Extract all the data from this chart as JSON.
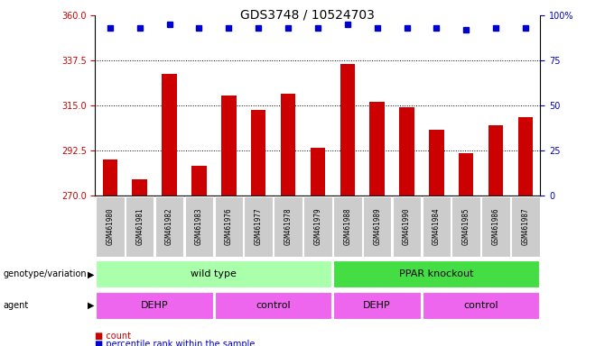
{
  "title": "GDS3748 / 10524703",
  "samples": [
    "GSM461980",
    "GSM461981",
    "GSM461982",
    "GSM461983",
    "GSM461976",
    "GSM461977",
    "GSM461978",
    "GSM461979",
    "GSM461988",
    "GSM461989",
    "GSM461990",
    "GSM461984",
    "GSM461985",
    "GSM461986",
    "GSM461987"
  ],
  "bar_values": [
    288,
    278,
    331,
    285,
    320,
    313,
    321,
    294,
    336,
    317,
    314,
    303,
    291,
    305,
    309
  ],
  "percentile_values": [
    93,
    93,
    95,
    93,
    93,
    93,
    93,
    93,
    95,
    93,
    93,
    93,
    92,
    93,
    93
  ],
  "bar_color": "#cc0000",
  "dot_color": "#0000cc",
  "ylim_left": [
    270,
    360
  ],
  "ylim_right": [
    0,
    100
  ],
  "yticks_left": [
    270,
    292.5,
    315,
    337.5,
    360
  ],
  "yticks_right": [
    0,
    25,
    50,
    75,
    100
  ],
  "grid_values": [
    292.5,
    315,
    337.5
  ],
  "genotype_groups": [
    {
      "label": "wild type",
      "start": 0,
      "end": 8,
      "color": "#aaffaa"
    },
    {
      "label": "PPAR knockout",
      "start": 8,
      "end": 15,
      "color": "#44dd44"
    }
  ],
  "agent_groups": [
    {
      "label": "DEHP",
      "start": 0,
      "end": 4
    },
    {
      "label": "control",
      "start": 4,
      "end": 8
    },
    {
      "label": "DEHP",
      "start": 8,
      "end": 11
    },
    {
      "label": "control",
      "start": 11,
      "end": 15
    }
  ],
  "agent_color": "#ee66ee",
  "label_font_size": 7,
  "tick_font_size": 7,
  "bar_width": 0.5,
  "sample_box_color": "#cccccc",
  "fig_bg": "#ffffff",
  "title_fontsize": 10,
  "legend_count_label": "count",
  "legend_pct_label": "percentile rank within the sample",
  "genotype_label": "genotype/variation",
  "agent_label": "agent"
}
